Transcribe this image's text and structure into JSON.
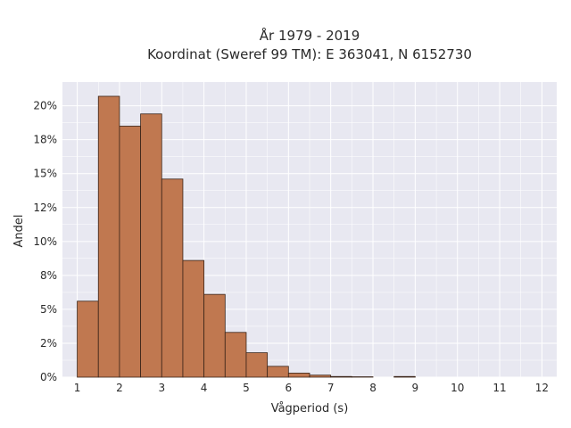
{
  "chart_data": {
    "type": "bar",
    "title_lines": [
      "År 1979 - 2019",
      "Koordinat (Sweref 99 TM): E 363041, N 6152730"
    ],
    "xlabel": "Vågperiod (s)",
    "ylabel": "Andel",
    "xlim": [
      0.65,
      12.35
    ],
    "ylim": [
      0,
      21.75
    ],
    "x_ticks": [
      1,
      2,
      3,
      4,
      5,
      6,
      7,
      8,
      9,
      10,
      11,
      12
    ],
    "x_tick_labels": [
      "1",
      "2",
      "3",
      "4",
      "5",
      "6",
      "7",
      "8",
      "9",
      "10",
      "11",
      "12"
    ],
    "y_ticks": [
      0,
      2.5,
      5,
      7.5,
      10,
      12.5,
      15,
      17.5,
      20
    ],
    "y_tick_labels": [
      "0%",
      "2%",
      "5%",
      "8%",
      "10%",
      "12%",
      "15%",
      "18%",
      "20%"
    ],
    "bin_width": 0.5,
    "bins": [
      {
        "start": 1.0,
        "value": 5.6
      },
      {
        "start": 1.5,
        "value": 20.7
      },
      {
        "start": 2.0,
        "value": 18.5
      },
      {
        "start": 2.5,
        "value": 19.4
      },
      {
        "start": 3.0,
        "value": 14.6
      },
      {
        "start": 3.5,
        "value": 8.6
      },
      {
        "start": 4.0,
        "value": 6.1
      },
      {
        "start": 4.5,
        "value": 3.3
      },
      {
        "start": 5.0,
        "value": 1.8
      },
      {
        "start": 5.5,
        "value": 0.8
      },
      {
        "start": 6.0,
        "value": 0.3
      },
      {
        "start": 6.5,
        "value": 0.15
      },
      {
        "start": 7.0,
        "value": 0.05
      },
      {
        "start": 7.5,
        "value": 0.03
      },
      {
        "start": 8.0,
        "value": 0.0
      },
      {
        "start": 8.5,
        "value": 0.05
      }
    ],
    "bar_color": "#c07850",
    "bar_edge_color": "#3a2418",
    "background_color": "#e8e8f1",
    "grid": true
  }
}
